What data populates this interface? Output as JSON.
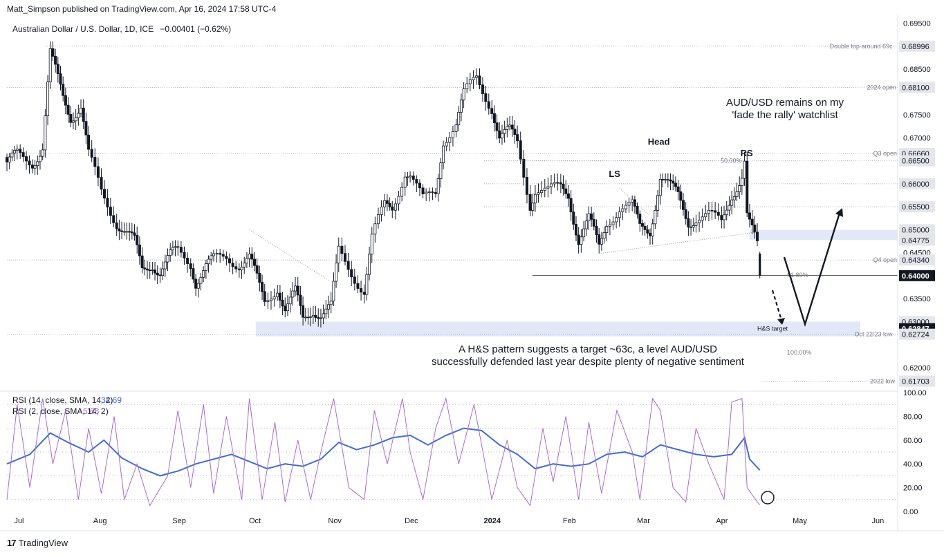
{
  "header": {
    "published": "Matt_Simpson published on TradingView.com, Apr 16, 2024 17:58 UTC-4",
    "symbol": "Australian Dollar / U.S. Dollar, 1D, ICE",
    "change": "−0.00401 (−0.62%)"
  },
  "footer": {
    "logo_text": "TradingView",
    "logo_mark": "17"
  },
  "colors": {
    "up": "#131722",
    "down": "#131722",
    "rsi14": "#3f6bd8",
    "rsi2": "#a66ad6",
    "zone": "#e3e8f8",
    "annot": "#131722"
  },
  "chart_data": [
    {
      "type": "candlestick",
      "title": "Australian Dollar / U.S. Dollar, 1D, ICE",
      "ylim": [
        0.615,
        0.697
      ],
      "y_ticks": [
        "0.69500",
        "0.68500",
        "0.67500",
        "0.67000",
        "0.65500",
        "0.64500",
        "0.63500",
        "0.62000"
      ],
      "x_labels": [
        "Jul",
        "Aug",
        "Sep",
        "Oct",
        "Nov",
        "Dec",
        "2024",
        "Feb",
        "Mar",
        "Apr",
        "May",
        "Jun"
      ],
      "price_labels": [
        {
          "value": "0.68996",
          "label": "Double top around 69c"
        },
        {
          "value": "0.68100",
          "label": "2024 open"
        },
        {
          "value": "0.66660",
          "label": "Q3 open"
        },
        {
          "value": "0.66500",
          "label": ""
        },
        {
          "value": "0.66000",
          "label": ""
        },
        {
          "value": "0.65500",
          "label": ""
        },
        {
          "value": "0.65000",
          "label": ""
        },
        {
          "value": "0.64775",
          "label": ""
        },
        {
          "value": "0.64340",
          "label": "Q4 open"
        },
        {
          "value": "0.64005",
          "label": ""
        },
        {
          "value": "0.64000",
          "label": "",
          "current": true
        },
        {
          "value": "0.63000",
          "label": ""
        },
        {
          "value": "0.62847",
          "label": "",
          "current": true
        },
        {
          "value": "0.62724",
          "label": "Oct 22/23 low"
        },
        {
          "value": "0.61703",
          "label": "2022 low"
        }
      ],
      "fib_labels": [
        "50.00%",
        "61.80%",
        "100.00%"
      ],
      "pattern_labels": [
        "LS",
        "Head",
        "RS",
        "H&S target"
      ],
      "annotations": [
        "AUD/USD remains on my\n'fade the rally' watchlist",
        "A H&S pattern suggests a target ~63c, a level AUD/USD\nsuccessfully defended last year despite plenty of negative sentiment"
      ],
      "close_path": [
        [
          "2023-06-26",
          0.664
        ],
        [
          "2023-06-30",
          0.666
        ],
        [
          "2023-07-06",
          0.665
        ],
        [
          "2023-07-10",
          0.668
        ],
        [
          "2023-07-13",
          0.688
        ],
        [
          "2023-07-14",
          0.686
        ],
        [
          "2023-07-18",
          0.679
        ],
        [
          "2023-07-21",
          0.675
        ],
        [
          "2023-07-25",
          0.677
        ],
        [
          "2023-07-28",
          0.666
        ],
        [
          "2023-08-02",
          0.658
        ],
        [
          "2023-08-08",
          0.652
        ],
        [
          "2023-08-11",
          0.65
        ],
        [
          "2023-08-15",
          0.647
        ],
        [
          "2023-08-18",
          0.641
        ],
        [
          "2023-08-22",
          0.643
        ],
        [
          "2023-08-25",
          0.641
        ],
        [
          "2023-08-29",
          0.644
        ],
        [
          "2023-09-01",
          0.645
        ],
        [
          "2023-09-06",
          0.643
        ],
        [
          "2023-09-08",
          0.639
        ],
        [
          "2023-09-12",
          0.642
        ],
        [
          "2023-09-15",
          0.643
        ],
        [
          "2023-09-20",
          0.644
        ],
        [
          "2023-09-25",
          0.643
        ],
        [
          "2023-09-29",
          0.644
        ],
        [
          "2023-10-03",
          0.637
        ],
        [
          "2023-10-05",
          0.634
        ],
        [
          "2023-10-10",
          0.638
        ],
        [
          "2023-10-13",
          0.633
        ],
        [
          "2023-10-17",
          0.636
        ],
        [
          "2023-10-20",
          0.63
        ],
        [
          "2023-10-24",
          0.633
        ],
        [
          "2023-10-27",
          0.632
        ],
        [
          "2023-10-31",
          0.633
        ],
        [
          "2023-11-03",
          0.645
        ],
        [
          "2023-11-08",
          0.641
        ],
        [
          "2023-11-13",
          0.637
        ],
        [
          "2023-11-16",
          0.648
        ],
        [
          "2023-11-21",
          0.655
        ],
        [
          "2023-11-24",
          0.655
        ],
        [
          "2023-11-29",
          0.663
        ],
        [
          "2023-12-01",
          0.662
        ],
        [
          "2023-12-06",
          0.656
        ],
        [
          "2023-12-11",
          0.658
        ],
        [
          "2023-12-14",
          0.67
        ],
        [
          "2023-12-19",
          0.673
        ],
        [
          "2023-12-22",
          0.679
        ],
        [
          "2023-12-27",
          0.683
        ],
        [
          "2024-01-02",
          0.677
        ],
        [
          "2024-01-05",
          0.67
        ],
        [
          "2024-01-09",
          0.671
        ],
        [
          "2024-01-12",
          0.669
        ],
        [
          "2024-01-17",
          0.656
        ],
        [
          "2024-01-19",
          0.659
        ],
        [
          "2024-01-24",
          0.658
        ],
        [
          "2024-01-29",
          0.659
        ],
        [
          "2024-02-01",
          0.658
        ],
        [
          "2024-02-05",
          0.648
        ],
        [
          "2024-02-09",
          0.652
        ],
        [
          "2024-02-13",
          0.646
        ],
        [
          "2024-02-16",
          0.652
        ],
        [
          "2024-02-21",
          0.655
        ],
        [
          "2024-02-26",
          0.655
        ],
        [
          "2024-02-29",
          0.65
        ],
        [
          "2024-03-04",
          0.65
        ],
        [
          "2024-03-08",
          0.662
        ],
        [
          "2024-03-12",
          0.659
        ],
        [
          "2024-03-15",
          0.657
        ],
        [
          "2024-03-19",
          0.652
        ],
        [
          "2024-03-22",
          0.653
        ],
        [
          "2024-03-27",
          0.653
        ],
        [
          "2024-04-01",
          0.651
        ],
        [
          "2024-04-05",
          0.658
        ],
        [
          "2024-04-09",
          0.662
        ],
        [
          "2024-04-10",
          0.665
        ],
        [
          "2024-04-11",
          0.653
        ],
        [
          "2024-04-12",
          0.651
        ],
        [
          "2024-04-15",
          0.646
        ],
        [
          "2024-04-16",
          0.64
        ]
      ]
    },
    {
      "type": "line",
      "title": "RSI",
      "ylim": [
        0,
        100
      ],
      "y_ticks": [
        "100.00",
        "80.00",
        "60.00",
        "40.00",
        "20.00",
        "0.00"
      ],
      "series": [
        {
          "name": "RSI (14, close, SMA, 14, 2)",
          "last": "34.69",
          "values": [
            [
              "2023-06-26",
              40
            ],
            [
              "2023-07-05",
              48
            ],
            [
              "2023-07-13",
              66
            ],
            [
              "2023-07-20",
              58
            ],
            [
              "2023-07-28",
              50
            ],
            [
              "2023-08-03",
              60
            ],
            [
              "2023-08-10",
              45
            ],
            [
              "2023-08-18",
              36
            ],
            [
              "2023-08-25",
              30
            ],
            [
              "2023-09-01",
              34
            ],
            [
              "2023-09-08",
              40
            ],
            [
              "2023-09-15",
              44
            ],
            [
              "2023-09-22",
              48
            ],
            [
              "2023-09-29",
              42
            ],
            [
              "2023-10-06",
              36
            ],
            [
              "2023-10-13",
              40
            ],
            [
              "2023-10-20",
              38
            ],
            [
              "2023-10-27",
              44
            ],
            [
              "2023-11-03",
              58
            ],
            [
              "2023-11-10",
              52
            ],
            [
              "2023-11-17",
              56
            ],
            [
              "2023-11-24",
              62
            ],
            [
              "2023-12-01",
              64
            ],
            [
              "2023-12-08",
              56
            ],
            [
              "2023-12-15",
              64
            ],
            [
              "2023-12-22",
              70
            ],
            [
              "2023-12-29",
              68
            ],
            [
              "2024-01-05",
              56
            ],
            [
              "2024-01-12",
              48
            ],
            [
              "2024-01-19",
              36
            ],
            [
              "2024-01-26",
              40
            ],
            [
              "2024-02-02",
              38
            ],
            [
              "2024-02-09",
              40
            ],
            [
              "2024-02-16",
              48
            ],
            [
              "2024-02-23",
              50
            ],
            [
              "2024-03-01",
              46
            ],
            [
              "2024-03-08",
              56
            ],
            [
              "2024-03-15",
              52
            ],
            [
              "2024-03-22",
              48
            ],
            [
              "2024-03-29",
              46
            ],
            [
              "2024-04-05",
              48
            ],
            [
              "2024-04-10",
              62
            ],
            [
              "2024-04-12",
              44
            ],
            [
              "2024-04-16",
              34.69
            ]
          ]
        },
        {
          "name": "RSI (2, close, SMA, 14, 2)",
          "last": "5.63",
          "values": [
            [
              "2023-06-26",
              10
            ],
            [
              "2023-06-30",
              90
            ],
            [
              "2023-07-05",
              20
            ],
            [
              "2023-07-10",
              95
            ],
            [
              "2023-07-14",
              40
            ],
            [
              "2023-07-19",
              85
            ],
            [
              "2023-07-24",
              10
            ],
            [
              "2023-07-28",
              70
            ],
            [
              "2023-08-02",
              15
            ],
            [
              "2023-08-07",
              80
            ],
            [
              "2023-08-11",
              10
            ],
            [
              "2023-08-16",
              40
            ],
            [
              "2023-08-21",
              5
            ],
            [
              "2023-08-28",
              30
            ],
            [
              "2023-09-01",
              85
            ],
            [
              "2023-09-06",
              20
            ],
            [
              "2023-09-11",
              90
            ],
            [
              "2023-09-15",
              15
            ],
            [
              "2023-09-20",
              80
            ],
            [
              "2023-09-26",
              10
            ],
            [
              "2023-09-29",
              95
            ],
            [
              "2023-10-04",
              10
            ],
            [
              "2023-10-09",
              75
            ],
            [
              "2023-10-13",
              8
            ],
            [
              "2023-10-18",
              60
            ],
            [
              "2023-10-23",
              10
            ],
            [
              "2023-10-27",
              50
            ],
            [
              "2023-11-01",
              95
            ],
            [
              "2023-11-07",
              20
            ],
            [
              "2023-11-13",
              10
            ],
            [
              "2023-11-17",
              85
            ],
            [
              "2023-11-22",
              40
            ],
            [
              "2023-11-28",
              95
            ],
            [
              "2023-12-01",
              50
            ],
            [
              "2023-12-06",
              10
            ],
            [
              "2023-12-11",
              70
            ],
            [
              "2023-12-15",
              95
            ],
            [
              "2023-12-20",
              40
            ],
            [
              "2023-12-26",
              90
            ],
            [
              "2024-01-02",
              10
            ],
            [
              "2024-01-08",
              60
            ],
            [
              "2024-01-12",
              20
            ],
            [
              "2024-01-17",
              5
            ],
            [
              "2024-01-22",
              70
            ],
            [
              "2024-01-26",
              25
            ],
            [
              "2024-01-31",
              80
            ],
            [
              "2024-02-05",
              10
            ],
            [
              "2024-02-09",
              75
            ],
            [
              "2024-02-14",
              15
            ],
            [
              "2024-02-20",
              85
            ],
            [
              "2024-02-26",
              50
            ],
            [
              "2024-02-29",
              10
            ],
            [
              "2024-03-05",
              95
            ],
            [
              "2024-03-08",
              85
            ],
            [
              "2024-03-13",
              20
            ],
            [
              "2024-03-18",
              8
            ],
            [
              "2024-03-22",
              70
            ],
            [
              "2024-03-27",
              40
            ],
            [
              "2024-04-02",
              10
            ],
            [
              "2024-04-05",
              92
            ],
            [
              "2024-04-09",
              95
            ],
            [
              "2024-04-11",
              20
            ],
            [
              "2024-04-15",
              8
            ],
            [
              "2024-04-16",
              5.63
            ]
          ]
        }
      ],
      "levels": [
        90,
        70,
        50,
        30,
        10
      ]
    }
  ]
}
